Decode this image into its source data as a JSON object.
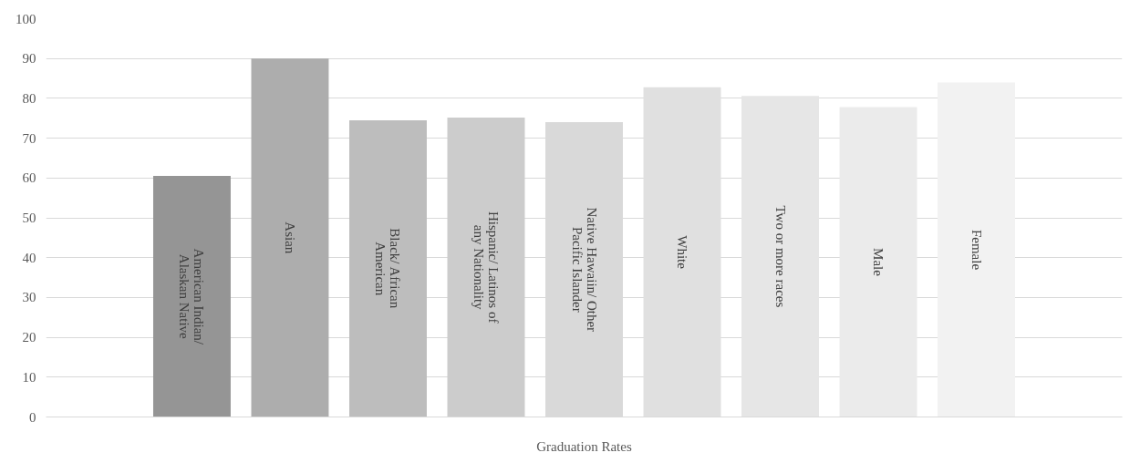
{
  "chart_data": {
    "type": "bar",
    "categories": [
      "Graduation Rates"
    ],
    "series": [
      {
        "name": "American Indian/ Alaskan Native",
        "color": "#959595",
        "values": [
          60.5
        ]
      },
      {
        "name": "Asian",
        "color": "#adadad",
        "values": [
          90
        ]
      },
      {
        "name": "Black/ African American",
        "color": "#bdbdbd",
        "values": [
          74.5
        ]
      },
      {
        "name": "Hispanic/ Latinos of any Nationality",
        "color": "#cccccc",
        "values": [
          75.2
        ]
      },
      {
        "name": "Native Hawaiin/ Other Pacific Islander",
        "color": "#d9d9d9",
        "values": [
          74
        ]
      },
      {
        "name": "White",
        "color": "#e0e0e0",
        "values": [
          82.8
        ]
      },
      {
        "name": "Two or more races",
        "color": "#e6e6e6",
        "values": [
          80.6
        ]
      },
      {
        "name": "Male",
        "color": "#ebebeb",
        "values": [
          77.8
        ]
      },
      {
        "name": "Female",
        "color": "#f2f2f2",
        "values": [
          84
        ]
      }
    ],
    "ylim": [
      0,
      100
    ],
    "yticks": [
      0,
      10,
      20,
      30,
      40,
      50,
      60,
      70,
      80,
      90,
      100
    ],
    "grid": "y"
  }
}
